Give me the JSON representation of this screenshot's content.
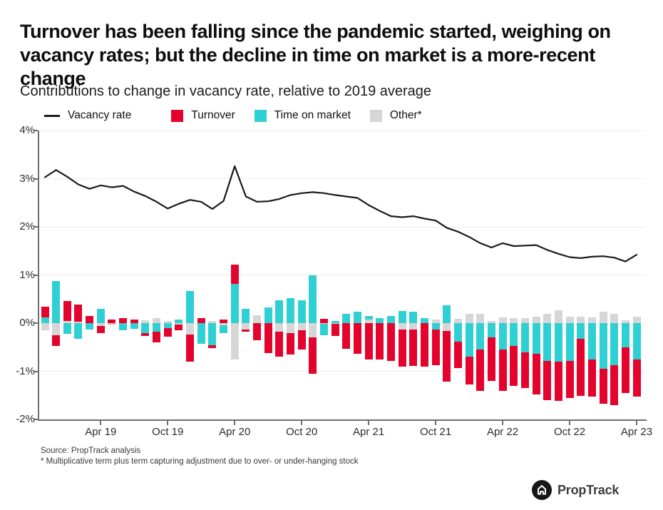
{
  "header": {
    "title": "Turnover has been falling since the pandemic started, weighing on vacancy rates; but the decline in time on market is a more-recent change",
    "subtitle": "Contributions to change in vacancy rate, relative to 2019 average"
  },
  "legend": [
    {
      "label": "Vacancy rate",
      "type": "line",
      "color": "#1d1d1d"
    },
    {
      "label": "Turnover",
      "type": "swatch",
      "color": "#e4032d"
    },
    {
      "label": "Time on market",
      "type": "swatch",
      "color": "#2fd0d3"
    },
    {
      "label": "Other*",
      "type": "swatch",
      "color": "#d6d6d6"
    }
  ],
  "footer": {
    "source": "Source: PropTrack analysis",
    "note": "* Multiplicative term plus term capturing adjustment due to over- or under-hanging stock",
    "logo_text": "PropTrack"
  },
  "chart_data": {
    "type": "bar",
    "subtype": "stacked-bars-with-line-overlay",
    "title": "Contributions to change in vacancy rate, relative to 2019 average",
    "xlabel": "",
    "ylabel": "",
    "ylim": [
      -2,
      4
    ],
    "grid": "horizontal",
    "legend_position": "top",
    "y_tick_labels": [
      "4%",
      "3%",
      "2%",
      "1%",
      "0%",
      "-1%",
      "-2%"
    ],
    "y_tick_values": [
      4,
      3,
      2,
      1,
      0,
      -1,
      -2
    ],
    "x_tick_labels": [
      "Apr 19",
      "Oct 19",
      "Apr 20",
      "Oct 20",
      "Apr 21",
      "Oct 21",
      "Apr 22",
      "Oct 22",
      "Apr 23"
    ],
    "x_tick_indices": [
      5,
      11,
      17,
      23,
      29,
      35,
      41,
      47,
      53
    ],
    "bar_stack_order_from_zero": [
      "Other*",
      "Time on market",
      "Turnover"
    ],
    "categories": [
      "Nov 18",
      "Dec 18",
      "Jan 19",
      "Feb 19",
      "Mar 19",
      "Apr 19",
      "May 19",
      "Jun 19",
      "Jul 19",
      "Aug 19",
      "Sep 19",
      "Oct 19",
      "Nov 19",
      "Dec 19",
      "Jan 20",
      "Feb 20",
      "Mar 20",
      "Apr 20",
      "May 20",
      "Jun 20",
      "Jul 20",
      "Aug 20",
      "Sep 20",
      "Oct 20",
      "Nov 20",
      "Dec 20",
      "Jan 21",
      "Feb 21",
      "Mar 21",
      "Apr 21",
      "May 21",
      "Jun 21",
      "Jul 21",
      "Aug 21",
      "Sep 21",
      "Oct 21",
      "Nov 21",
      "Dec 21",
      "Jan 22",
      "Feb 22",
      "Mar 22",
      "Apr 22",
      "May 22",
      "Jun 22",
      "Jul 22",
      "Aug 22",
      "Sep 22",
      "Oct 22",
      "Nov 22",
      "Dec 22",
      "Jan 23",
      "Feb 23",
      "Mar 23",
      "Apr 23"
    ],
    "series": [
      {
        "name": "Vacancy rate",
        "kind": "line",
        "color": "#1a1a1a",
        "unit": "%",
        "values": [
          3.03,
          3.18,
          3.04,
          2.88,
          2.79,
          2.86,
          2.82,
          2.85,
          2.73,
          2.64,
          2.52,
          2.38,
          2.48,
          2.56,
          2.52,
          2.37,
          2.54,
          3.26,
          2.63,
          2.52,
          2.53,
          2.58,
          2.66,
          2.7,
          2.72,
          2.7,
          2.66,
          2.63,
          2.6,
          2.45,
          2.33,
          2.22,
          2.2,
          2.22,
          2.17,
          2.13,
          1.98,
          1.9,
          1.79,
          1.66,
          1.57,
          1.66,
          1.6,
          1.61,
          1.62,
          1.52,
          1.44,
          1.37,
          1.35,
          1.38,
          1.39,
          1.36,
          1.28,
          1.42
        ]
      },
      {
        "name": "Turnover",
        "kind": "bar",
        "color": "#e4032d",
        "unit": "%",
        "values": [
          0.22,
          -0.22,
          0.41,
          0.36,
          0.15,
          -0.15,
          0.07,
          0.11,
          0.07,
          -0.07,
          -0.22,
          -0.18,
          -0.12,
          -0.57,
          0.1,
          -0.06,
          0.07,
          0.4,
          -0.05,
          -0.35,
          -0.62,
          -0.52,
          -0.45,
          -0.4,
          -0.75,
          0.09,
          -0.25,
          -0.53,
          -0.63,
          -0.75,
          -0.76,
          -0.78,
          -0.77,
          -0.76,
          -0.9,
          -0.75,
          -1.05,
          -0.55,
          -0.57,
          -0.85,
          -0.9,
          -0.85,
          -0.82,
          -0.75,
          -0.85,
          -0.82,
          -0.82,
          -0.77,
          -1.18,
          -0.77,
          -0.72,
          -0.83,
          -0.95,
          -0.76
        ]
      },
      {
        "name": "Time on market",
        "kind": "bar",
        "color": "#2fd0d3",
        "unit": "%",
        "values": [
          0.12,
          0.88,
          -0.22,
          -0.32,
          -0.13,
          0.3,
          0.0,
          -0.15,
          -0.12,
          -0.2,
          -0.18,
          -0.1,
          0.07,
          0.67,
          -0.43,
          -0.46,
          -0.15,
          0.82,
          0.3,
          0.0,
          0.32,
          0.47,
          0.52,
          0.48,
          1.0,
          -0.23,
          0.05,
          0.19,
          0.23,
          0.08,
          0.1,
          0.15,
          0.25,
          0.23,
          0.1,
          -0.13,
          0.37,
          -0.38,
          -0.7,
          -0.55,
          -0.3,
          -0.55,
          -0.48,
          -0.6,
          -0.63,
          -0.78,
          -0.8,
          -0.78,
          -0.33,
          -0.75,
          -0.95,
          -0.87,
          -0.5,
          -0.76
        ]
      },
      {
        "name": "Other*",
        "kind": "bar",
        "color": "#d6d6d6",
        "unit": "%",
        "values": [
          -0.15,
          -0.25,
          0.05,
          0.03,
          0.0,
          -0.06,
          -0.05,
          0.0,
          0.0,
          0.06,
          0.11,
          0.05,
          -0.03,
          -0.23,
          0.0,
          0.05,
          -0.05,
          -0.75,
          -0.13,
          0.17,
          0.0,
          -0.18,
          -0.2,
          -0.15,
          -0.3,
          -0.02,
          -0.02,
          0.0,
          0.0,
          0.07,
          0.0,
          0.0,
          -0.13,
          -0.13,
          0.0,
          0.07,
          -0.17,
          0.09,
          0.19,
          0.19,
          0.05,
          0.12,
          0.1,
          0.11,
          0.13,
          0.19,
          0.27,
          0.14,
          0.13,
          0.12,
          0.23,
          0.19,
          0.06,
          0.13
        ]
      }
    ]
  }
}
